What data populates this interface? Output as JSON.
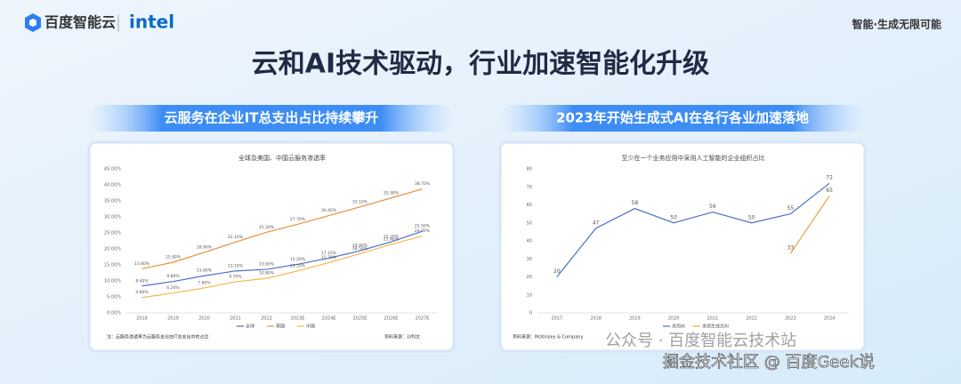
{
  "header": {
    "brand": "百度智能云",
    "partner": "intel",
    "slogan": "智能·生成无限可能"
  },
  "title": "云和AI技术驱动，行业加速智能化升级",
  "panels": [
    "云服务在企业IT总支出占比持续攀升",
    "2023年开始生成式AI在各行各业加速落地"
  ],
  "watermark": [
    "公众号 · 百度智能云技术站",
    "掘金技术社区 @ 百度Geek说"
  ],
  "chart_data": [
    {
      "type": "line",
      "title": "全球及美国、中国云服务渗透率",
      "categories": [
        "2018",
        "2019",
        "2020",
        "2021",
        "2022",
        "2023E",
        "2024E",
        "2025E",
        "2026E",
        "2027E"
      ],
      "series": [
        {
          "name": "全球",
          "color": "#4a6fc9",
          "values": [
            8.4,
            9.8,
            11.6,
            13.1,
            13.6,
            15.2,
            17.1,
            19.4,
            22.2,
            25.5
          ],
          "value_labels": [
            "8.40%",
            "9.80%",
            "11.60%",
            "13.10%",
            "13.60%",
            "15.20%",
            "17.10%",
            "19.40%",
            "22.20%",
            "25.50%"
          ]
        },
        {
          "name": "美国",
          "color": "#e8913a",
          "values": [
            13.8,
            15.8,
            18.9,
            22.1,
            25.2,
            27.7,
            30.4,
            33.1,
            35.9,
            38.7
          ],
          "value_labels": [
            "13.80%",
            "15.80%",
            "18.90%",
            "22.10%",
            "25.20%",
            "27.70%",
            "30.40%",
            "33.10%",
            "35.90%",
            "38.70%"
          ]
        },
        {
          "name": "中国",
          "color": "#f2b84b",
          "values": [
            4.8,
            6.2,
            7.8,
            9.7,
            10.8,
            13.1,
            15.7,
            18.5,
            21.4,
            24.0
          ],
          "value_labels": [
            "4.80%",
            "6.20%",
            "7.80%",
            "9.70%",
            "10.80%",
            "13.10%",
            "15.70%",
            "18.50%",
            "21.40%",
            "24.00%"
          ]
        }
      ],
      "ylim": [
        0,
        45
      ],
      "yticks": [
        {
          "value": 0,
          "label": "0.00%"
        },
        {
          "value": 5,
          "label": "5.00%"
        },
        {
          "value": 10,
          "label": "10.00%"
        },
        {
          "value": 15,
          "label": "15.00%"
        },
        {
          "value": 20,
          "label": "20.00%"
        },
        {
          "value": 25,
          "label": "25.00%"
        },
        {
          "value": 30,
          "label": "30.00%"
        },
        {
          "value": 35,
          "label": "35.00%"
        },
        {
          "value": 40,
          "label": "40.00%"
        },
        {
          "value": 45,
          "label": "45.00%"
        }
      ],
      "grid": false,
      "note": "注：云服务渗透率为云服务支出在IT总支出中的占比",
      "source": "资料来源：沙利文"
    },
    {
      "type": "line",
      "title": "至少在一个业务应用中采用人工智能的企业组织占比",
      "categories": [
        "2017",
        "2018",
        "2019",
        "2020",
        "2021",
        "2022",
        "2023",
        "2024"
      ],
      "series": [
        {
          "name": "采用AI",
          "color": "#4a6fc9",
          "values": [
            20,
            47,
            58,
            50,
            56,
            50,
            55,
            72
          ]
        },
        {
          "name": "采用生成式AI",
          "color": "#f0a23c",
          "values": [
            null,
            null,
            null,
            null,
            null,
            null,
            33,
            65
          ]
        }
      ],
      "ylim": [
        0,
        80
      ],
      "yticks": [
        0,
        10,
        20,
        30,
        40,
        50,
        60,
        70,
        80
      ],
      "grid": false,
      "source": "资料来源：McKinsey & Company"
    }
  ]
}
